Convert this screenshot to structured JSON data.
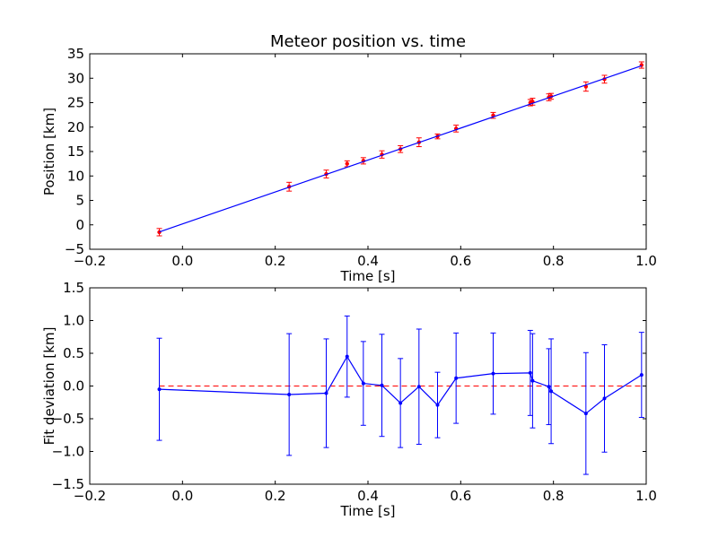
{
  "chart_data": [
    {
      "type": "scatter",
      "title": "Meteor position vs. time",
      "xlabel": "Time [s]",
      "ylabel": "Position [km]",
      "xlim": [
        -0.2,
        1.0
      ],
      "ylim": [
        -5,
        35
      ],
      "xticks": [
        "−0.2",
        "0.0",
        "0.2",
        "0.4",
        "0.6",
        "0.8",
        "1.0"
      ],
      "yticks": [
        "−5",
        "0",
        "5",
        "10",
        "15",
        "20",
        "25",
        "30",
        "35"
      ],
      "grid": false,
      "series": [
        {
          "kind": "points-with-errorbars",
          "color": "#ff0000",
          "points": [
            {
              "x": -0.05,
              "y": -1.5,
              "err": 0.75
            },
            {
              "x": 0.23,
              "y": 7.8,
              "err": 0.9
            },
            {
              "x": 0.31,
              "y": 10.4,
              "err": 0.8
            },
            {
              "x": 0.355,
              "y": 12.5,
              "err": 0.6
            },
            {
              "x": 0.39,
              "y": 13.1,
              "err": 0.65
            },
            {
              "x": 0.43,
              "y": 14.4,
              "err": 0.75
            },
            {
              "x": 0.47,
              "y": 15.5,
              "err": 0.7
            },
            {
              "x": 0.51,
              "y": 16.9,
              "err": 0.9
            },
            {
              "x": 0.55,
              "y": 18.1,
              "err": 0.5
            },
            {
              "x": 0.59,
              "y": 19.7,
              "err": 0.7
            },
            {
              "x": 0.67,
              "y": 22.4,
              "err": 0.6
            },
            {
              "x": 0.75,
              "y": 25.0,
              "err": 0.65
            },
            {
              "x": 0.755,
              "y": 25.2,
              "err": 0.7
            },
            {
              "x": 0.79,
              "y": 26.1,
              "err": 0.7
            },
            {
              "x": 0.795,
              "y": 26.3,
              "err": 0.6
            },
            {
              "x": 0.87,
              "y": 28.3,
              "err": 0.95
            },
            {
              "x": 0.91,
              "y": 29.8,
              "err": 0.8
            },
            {
              "x": 0.99,
              "y": 32.7,
              "err": 0.65
            }
          ]
        },
        {
          "kind": "fit-line",
          "color": "#0000ff",
          "x": [
            -0.05,
            0.99
          ],
          "y": [
            -1.45,
            32.55
          ]
        }
      ]
    },
    {
      "type": "line",
      "title": "",
      "xlabel": "Time [s]",
      "ylabel": "Fit deviation [km]",
      "xlim": [
        -0.2,
        1.0
      ],
      "ylim": [
        -1.5,
        1.5
      ],
      "xticks": [
        "−0.2",
        "0.0",
        "0.2",
        "0.4",
        "0.6",
        "0.8",
        "1.0"
      ],
      "yticks": [
        "−1.5",
        "−1.0",
        "−0.5",
        "0.0",
        "0.5",
        "1.0",
        "1.5"
      ],
      "grid": false,
      "reference_line": {
        "y": 0.0,
        "color": "#ff0000",
        "style": "dashed"
      },
      "series": [
        {
          "kind": "line-with-errorbars",
          "color": "#0000ff",
          "points": [
            {
              "x": -0.05,
              "y": -0.05,
              "err": 0.78
            },
            {
              "x": 0.23,
              "y": -0.13,
              "err": 0.93
            },
            {
              "x": 0.31,
              "y": -0.11,
              "err": 0.83
            },
            {
              "x": 0.355,
              "y": 0.45,
              "err": 0.62
            },
            {
              "x": 0.39,
              "y": 0.04,
              "err": 0.64
            },
            {
              "x": 0.43,
              "y": 0.01,
              "err": 0.78
            },
            {
              "x": 0.47,
              "y": -0.26,
              "err": 0.68
            },
            {
              "x": 0.51,
              "y": -0.01,
              "err": 0.88
            },
            {
              "x": 0.55,
              "y": -0.29,
              "err": 0.5
            },
            {
              "x": 0.59,
              "y": 0.12,
              "err": 0.69
            },
            {
              "x": 0.67,
              "y": 0.19,
              "err": 0.62
            },
            {
              "x": 0.75,
              "y": 0.2,
              "err": 0.65
            },
            {
              "x": 0.755,
              "y": 0.08,
              "err": 0.72
            },
            {
              "x": 0.79,
              "y": -0.01,
              "err": 0.58
            },
            {
              "x": 0.795,
              "y": -0.08,
              "err": 0.8
            },
            {
              "x": 0.87,
              "y": -0.42,
              "err": 0.93
            },
            {
              "x": 0.91,
              "y": -0.19,
              "err": 0.82
            },
            {
              "x": 0.99,
              "y": 0.17,
              "err": 0.65
            }
          ]
        }
      ]
    }
  ]
}
